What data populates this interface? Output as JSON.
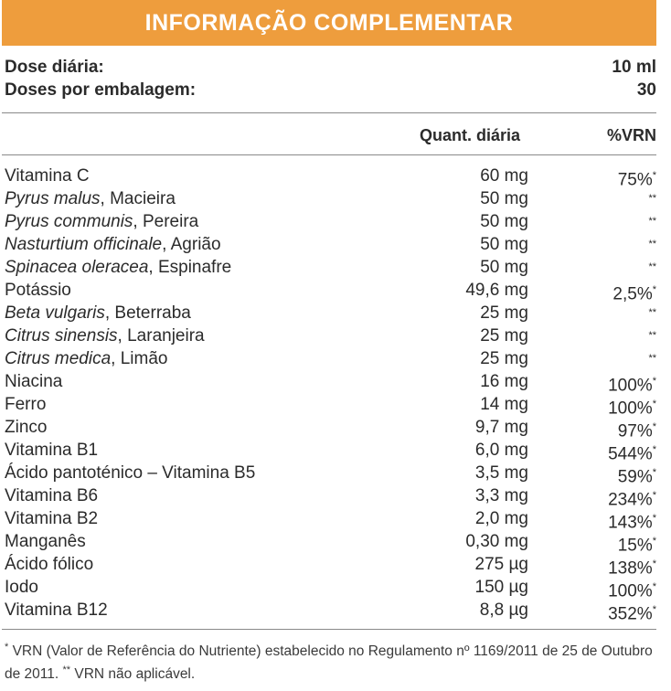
{
  "header": {
    "title": "INFORMAÇÃO COMPLEMENTAR",
    "background": "#ee9d3d"
  },
  "dose": {
    "daily_label": "Dose diária:",
    "daily_value": "10 ml",
    "per_pack_label": "Doses por embalagem:",
    "per_pack_value": "30"
  },
  "columns": {
    "quantity": "Quant. diária",
    "vrn": "%VRN"
  },
  "rows": [
    {
      "latin": "",
      "name": "Vitamina C",
      "qty": "60 mg",
      "vrn": "75%",
      "mark": "*"
    },
    {
      "latin": "Pyrus malus",
      "name": ", Macieira",
      "qty": "50 mg",
      "vrn": "",
      "mark": "**"
    },
    {
      "latin": "Pyrus communis",
      "name": ", Pereira",
      "qty": "50 mg",
      "vrn": "",
      "mark": "**"
    },
    {
      "latin": "Nasturtium officinale",
      "name": ", Agrião",
      "qty": "50 mg",
      "vrn": "",
      "mark": "**"
    },
    {
      "latin": "Spinacea oleracea",
      "name": ", Espinafre",
      "qty": "50 mg",
      "vrn": "",
      "mark": "**"
    },
    {
      "latin": "",
      "name": "Potássio",
      "qty": "49,6 mg",
      "vrn": "2,5%",
      "mark": "*"
    },
    {
      "latin": "Beta vulgaris",
      "name": ", Beterraba",
      "qty": "25 mg",
      "vrn": "",
      "mark": "**"
    },
    {
      "latin": "Citrus sinensis",
      "name": ", Laranjeira",
      "qty": "25 mg",
      "vrn": "",
      "mark": "**"
    },
    {
      "latin": "Citrus medica",
      "name": ", Limão",
      "qty": "25 mg",
      "vrn": "",
      "mark": "**"
    },
    {
      "latin": "",
      "name": "Niacina",
      "qty": "16 mg",
      "vrn": "100%",
      "mark": "*"
    },
    {
      "latin": "",
      "name": "Ferro",
      "qty": "14 mg",
      "vrn": "100%",
      "mark": "*"
    },
    {
      "latin": "",
      "name": "Zinco",
      "qty": "9,7 mg",
      "vrn": "97%",
      "mark": "*"
    },
    {
      "latin": "",
      "name": "Vitamina B1",
      "qty": "6,0 mg",
      "vrn": "544%",
      "mark": "*"
    },
    {
      "latin": "",
      "name": "Ácido pantoténico – Vitamina B5",
      "qty": "3,5 mg",
      "vrn": "59%",
      "mark": "*"
    },
    {
      "latin": "",
      "name": "Vitamina B6",
      "qty": "3,3 mg",
      "vrn": "234%",
      "mark": "*"
    },
    {
      "latin": "",
      "name": "Vitamina B2",
      "qty": "2,0 mg",
      "vrn": "143%",
      "mark": "*"
    },
    {
      "latin": "",
      "name": "Manganês",
      "qty": "0,30 mg",
      "vrn": "15%",
      "mark": "*"
    },
    {
      "latin": "",
      "name": "Ácido fólico",
      "qty": "275 µg",
      "vrn": "138%",
      "mark": "*"
    },
    {
      "latin": "",
      "name": "Iodo",
      "qty": "150 µg",
      "vrn": "100%",
      "mark": "*"
    },
    {
      "latin": "",
      "name": "Vitamina B12",
      "qty": "8,8 µg",
      "vrn": "352%",
      "mark": "*"
    }
  ],
  "footnote": {
    "mark1": "*",
    "text1": " VRN (Valor de Referência do Nutriente) estabelecido no Regulamento nº 1169/2011 de 25 de Outubro de 2011. ",
    "mark2": "**",
    "text2": " VRN não aplicável."
  }
}
